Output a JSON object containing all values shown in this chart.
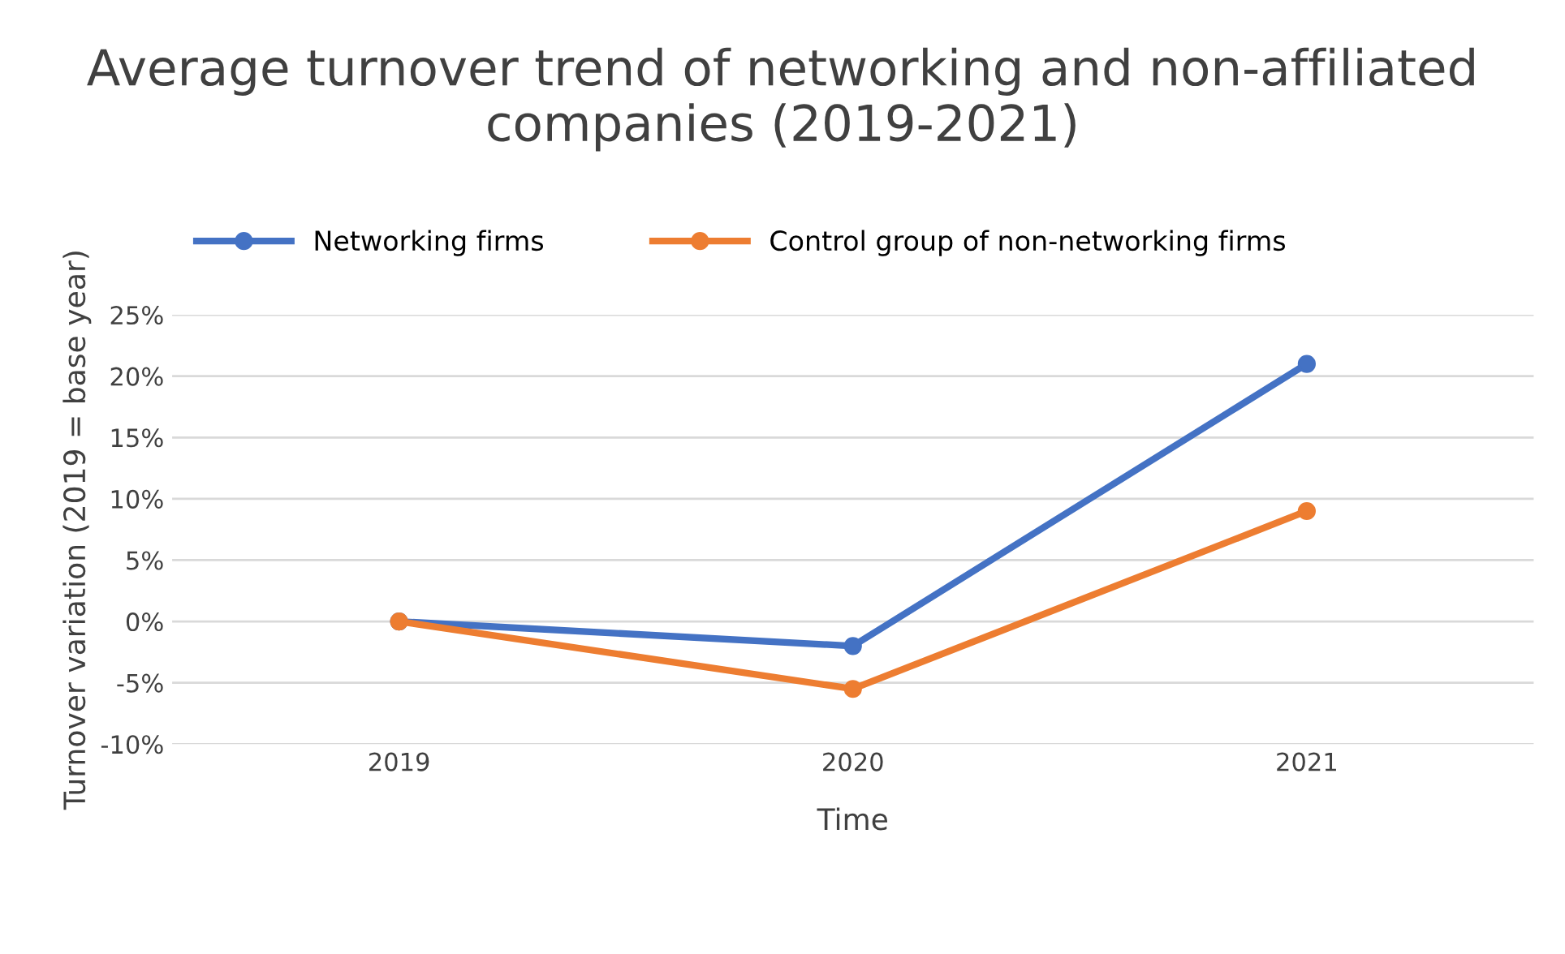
{
  "chart_data": {
    "type": "line",
    "title": "Average turnover trend of networking and non-affiliated companies (2019-2021)",
    "xlabel": "Time",
    "ylabel": "Turnover variation (2019 = base year)",
    "categories": [
      "2019",
      "2020",
      "2021"
    ],
    "series": [
      {
        "name": "Networking firms",
        "color": "#4472c4",
        "values": [
          0,
          -2,
          21
        ]
      },
      {
        "name": "Control group of non-networking firms",
        "color": "#ed7d31",
        "values": [
          0,
          -5.5,
          9
        ]
      }
    ],
    "ylim": [
      -10,
      25
    ],
    "yticks": [
      {
        "value": -10,
        "label": "-10%"
      },
      {
        "value": -5,
        "label": "-5%"
      },
      {
        "value": 0,
        "label": "0%"
      },
      {
        "value": 5,
        "label": "5%"
      },
      {
        "value": 10,
        "label": "10%"
      },
      {
        "value": 15,
        "label": "15%"
      },
      {
        "value": 20,
        "label": "20%"
      },
      {
        "value": 25,
        "label": "25%"
      }
    ],
    "grid": "y",
    "legend": "top",
    "marker": "circle",
    "line_style": "solid"
  }
}
